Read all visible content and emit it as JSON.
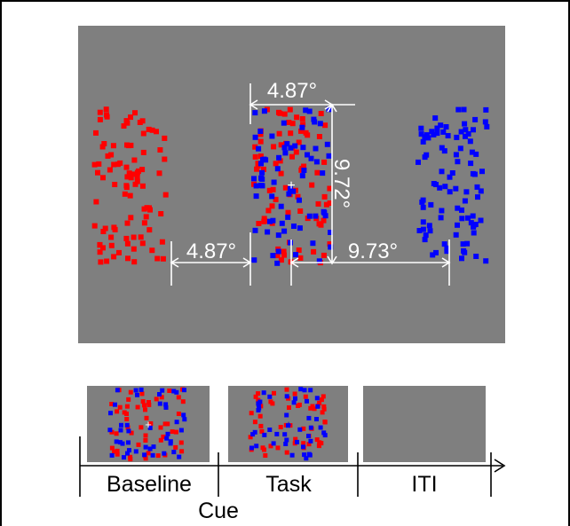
{
  "stimulus": {
    "background_color": "#7f7f7f",
    "left_dot_color": "#ff0000",
    "right_dot_color": "#0000ff",
    "fixation_symbol": "+",
    "annotations": {
      "center_width": "4.87°",
      "center_height": "9.72°",
      "gap_width": "4.87°",
      "center_distance": "9.73°"
    }
  },
  "timeline": {
    "phases": [
      "Baseline",
      "Task",
      "ITI"
    ],
    "cue_label": "Cue"
  }
}
